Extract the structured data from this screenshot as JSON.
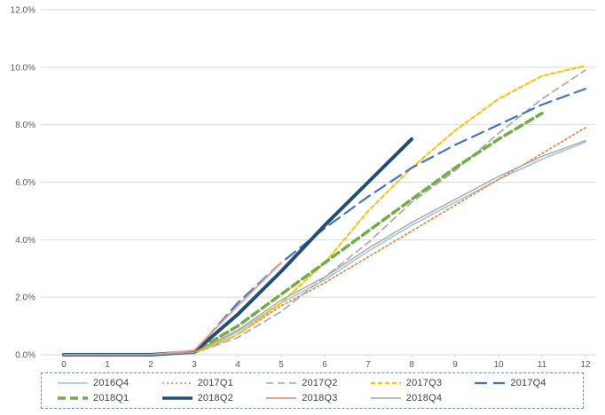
{
  "chart_data": {
    "type": "line",
    "title": "",
    "xlabel": "",
    "ylabel": "",
    "grid": "horizontal",
    "legend_position": "bottom",
    "x": [
      0,
      1,
      2,
      3,
      4,
      5,
      6,
      7,
      8,
      9,
      10,
      11,
      12
    ],
    "x_tick_labels": [
      "0",
      "1",
      "2",
      "3",
      "4",
      "5",
      "6",
      "7",
      "8",
      "9",
      "10",
      "11",
      "12"
    ],
    "ylim": [
      0,
      12
    ],
    "y_tick_step": 2,
    "y_tick_labels": [
      "0.0%",
      "2.0%",
      "4.0%",
      "6.0%",
      "8.0%",
      "10.0%",
      "12.0%"
    ],
    "series": [
      {
        "name": "2016Q4",
        "color": "#9CC2E5",
        "style": "solid",
        "width": 1.6,
        "values": [
          0,
          0,
          0,
          0.05,
          0.8,
          1.8,
          2.6,
          3.6,
          4.5,
          5.3,
          6.1,
          6.8,
          7.4
        ]
      },
      {
        "name": "2017Q1",
        "color": "#ED7D31",
        "style": "dotted",
        "width": 1.6,
        "values": [
          0,
          0,
          0,
          0.05,
          0.7,
          1.7,
          2.5,
          3.4,
          4.3,
          5.2,
          6.1,
          7.0,
          7.9
        ]
      },
      {
        "name": "2017Q2",
        "color": "#A5A5A5",
        "style": "dash",
        "width": 1.6,
        "values": [
          0,
          0,
          0,
          0.05,
          0.6,
          1.5,
          2.7,
          3.9,
          5.3,
          6.4,
          7.7,
          8.9,
          9.9
        ]
      },
      {
        "name": "2017Q3",
        "color": "#FFC000",
        "style": "short-dash",
        "width": 2,
        "values": [
          0,
          0,
          0,
          0.05,
          0.7,
          1.8,
          3.2,
          5.0,
          6.5,
          7.8,
          8.9,
          9.7,
          10.05
        ]
      },
      {
        "name": "2017Q4",
        "color": "#4472C4",
        "style": "long-dash",
        "width": 2.2,
        "values": [
          0,
          0,
          0,
          0.1,
          1.8,
          3.2,
          4.4,
          5.5,
          6.5,
          7.3,
          8.0,
          8.7,
          9.25
        ]
      },
      {
        "name": "2018Q1",
        "color": "#70AD47",
        "style": "thick-dash",
        "width": 3.5,
        "values": [
          0,
          0,
          0,
          0.1,
          1.0,
          2.1,
          3.2,
          4.3,
          5.4,
          6.5,
          7.5,
          8.4,
          null
        ]
      },
      {
        "name": "2018Q2",
        "color": "#1F4E79",
        "style": "solid",
        "width": 4,
        "values": [
          0,
          0,
          0,
          0.1,
          1.4,
          2.9,
          4.5,
          6.0,
          7.5,
          null,
          null,
          null,
          null
        ]
      },
      {
        "name": "2018Q3",
        "color": "#E9A089",
        "style": "solid",
        "width": 2,
        "values": [
          0,
          0,
          0,
          0.15,
          1.7,
          3.2,
          null,
          null,
          null,
          null,
          null,
          null,
          null
        ]
      },
      {
        "name": "2018Q4",
        "color": "#A6A6A6",
        "style": "solid",
        "width": 1.4,
        "values": [
          0,
          0,
          0,
          0.08,
          0.85,
          1.9,
          2.7,
          3.7,
          4.6,
          5.4,
          6.2,
          6.9,
          7.45
        ]
      }
    ]
  },
  "colors": {
    "background": "#FFFFFF",
    "gridline": "#D9D9D9",
    "axis_text": "#595959",
    "legend_text": "#404040",
    "legend_border": "#6E8FBF"
  }
}
